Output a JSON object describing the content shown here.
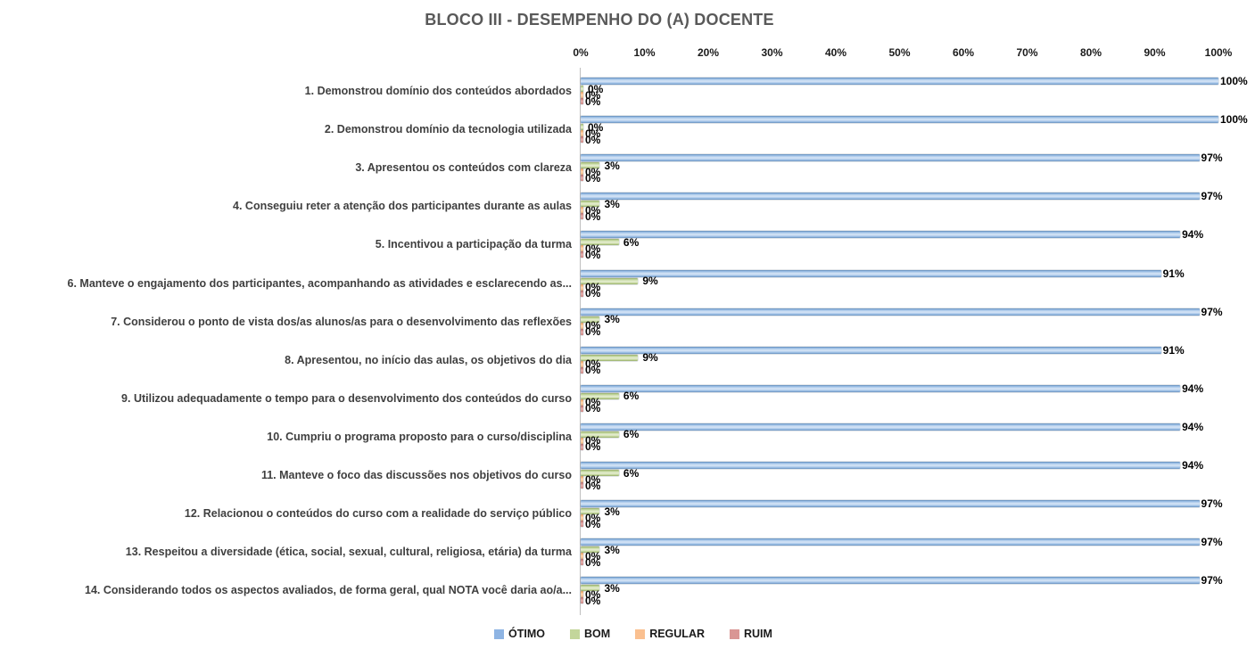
{
  "chart_data": {
    "type": "bar",
    "orientation": "horizontal",
    "title": "BLOCO III - DESEMPENHO DO (A) DOCENTE",
    "title_color": "#595959",
    "categories": [
      "1. Demonstrou domínio dos conteúdos abordados",
      "2. Demonstrou domínio da tecnologia utilizada",
      "3. Apresentou os conteúdos com clareza",
      "4. Conseguiu reter a atenção dos participantes durante as aulas",
      "5. Incentivou a participação da turma",
      "6. Manteve o engajamento dos participantes, acompanhando as atividades e esclarecendo as...",
      "7. Considerou o ponto de vista dos/as alunos/as para o desenvolvimento das reflexões",
      "8. Apresentou, no início das aulas, os objetivos do dia",
      "9. Utilizou adequadamente o tempo para o desenvolvimento dos conteúdos do curso",
      "10. Cumpriu o programa proposto para o curso/disciplina",
      "11. Manteve o foco das discussões nos objetivos do curso",
      "12. Relacionou o conteúdos do curso com a realidade do serviço público",
      "13. Respeitou a diversidade (ética, social, sexual, cultural, religiosa, etária) da turma",
      "14. Considerando todos os aspectos avaliados, de forma geral, qual NOTA você daria ao/a..."
    ],
    "series": [
      {
        "name": "ÓTIMO",
        "color": "#8EB4E3",
        "values": [
          100,
          100,
          97,
          97,
          94,
          91,
          97,
          91,
          94,
          94,
          94,
          97,
          97,
          97
        ]
      },
      {
        "name": "BOM",
        "color": "#C3D69B",
        "values": [
          0,
          0,
          3,
          3,
          6,
          9,
          3,
          9,
          6,
          6,
          6,
          3,
          3,
          3
        ]
      },
      {
        "name": "REGULAR",
        "color": "#FAC090",
        "values": [
          0,
          0,
          0,
          0,
          0,
          0,
          0,
          0,
          0,
          0,
          0,
          0,
          0,
          0
        ]
      },
      {
        "name": "RUIM",
        "color": "#D99694",
        "values": [
          0,
          0,
          0,
          0,
          0,
          0,
          0,
          0,
          0,
          0,
          0,
          0,
          0,
          0
        ]
      }
    ],
    "data_labels": true,
    "data_label_suffix": "%",
    "x_ticks": [
      "0%",
      "10%",
      "20%",
      "30%",
      "40%",
      "50%",
      "60%",
      "70%",
      "80%",
      "90%",
      "100%"
    ],
    "xlim": [
      0,
      100
    ],
    "grid": false,
    "legend_position": "bottom"
  }
}
